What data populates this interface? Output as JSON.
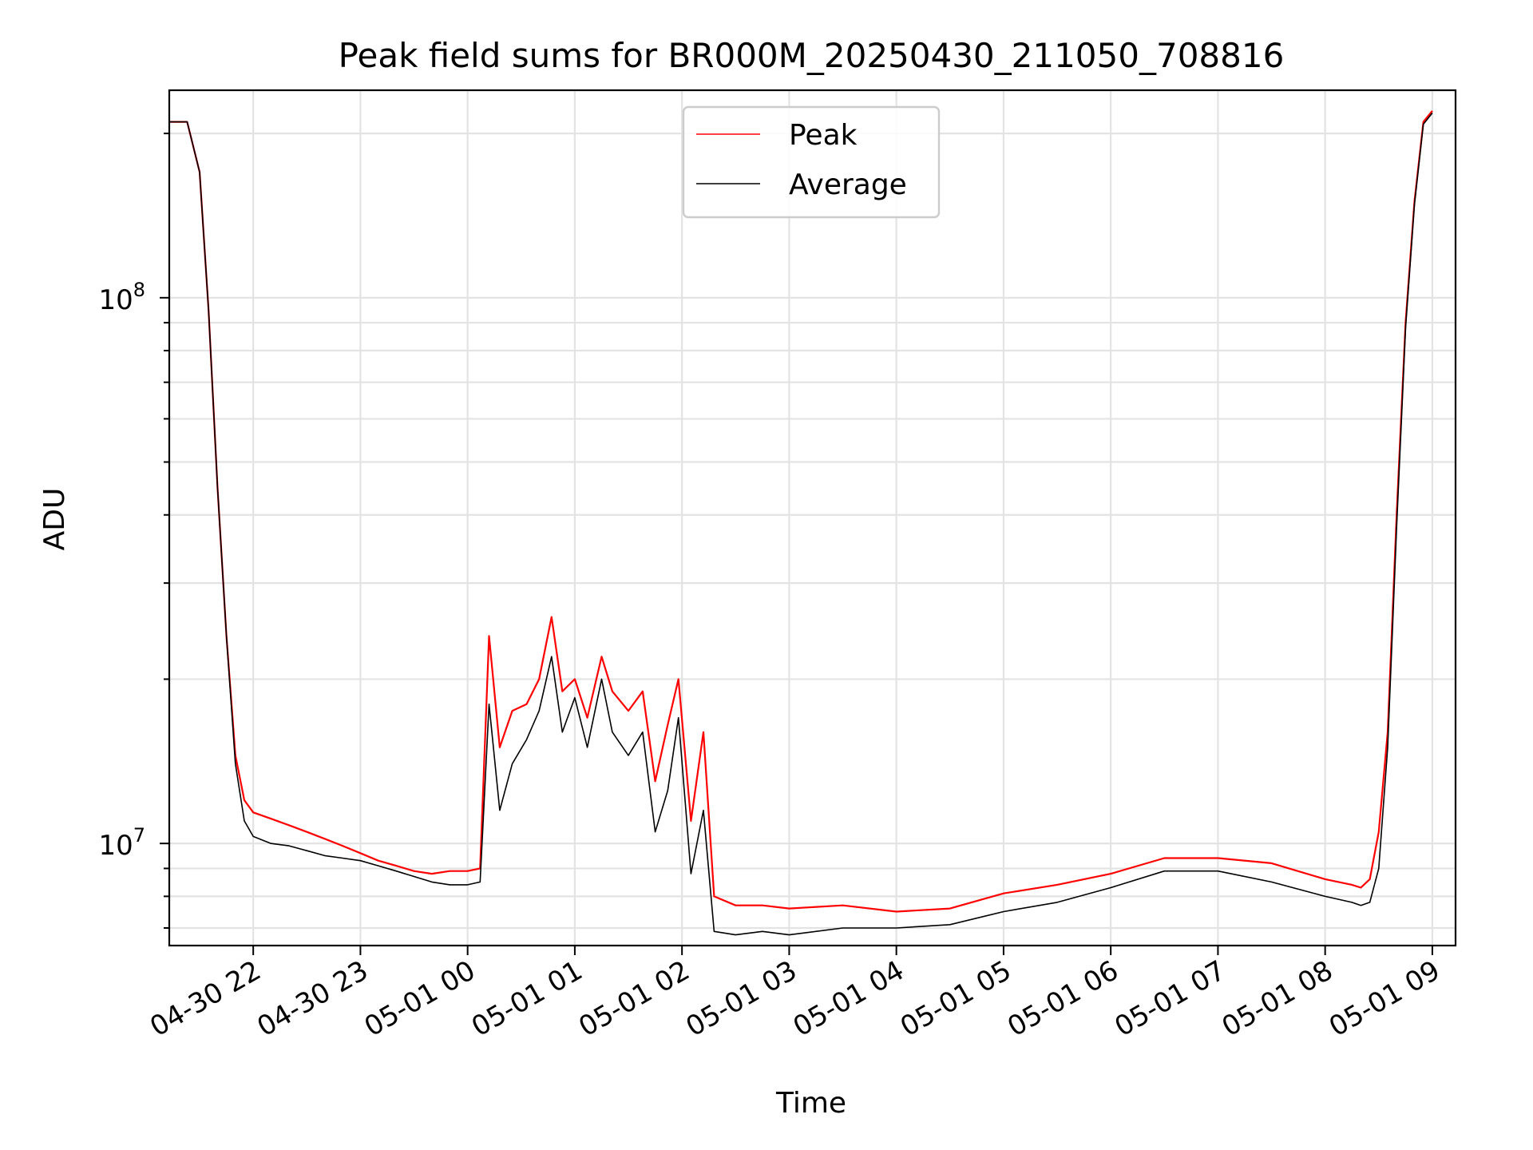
{
  "chart_data": {
    "type": "line",
    "title": "Peak field sums for BR000M_20250430_211050_708816",
    "xlabel": "Time",
    "ylabel": "ADU",
    "yscale": "log",
    "ylim": [
      6500000,
      240000000
    ],
    "xlim": [
      "2025-04-30 21:13",
      "2025-05-01 09:13"
    ],
    "grid": "major and minor",
    "legend": "upper center",
    "x_ticks": [
      "04-30 22",
      "04-30 23",
      "05-01 00",
      "05-01 01",
      "05-01 02",
      "05-01 03",
      "05-01 04",
      "05-01 05",
      "05-01 06",
      "05-01 07",
      "05-01 08",
      "05-01 09"
    ],
    "x_tick_times": [
      "2025-04-30 22:00",
      "2025-04-30 23:00",
      "2025-05-01 00:00",
      "2025-05-01 01:00",
      "2025-05-01 02:00",
      "2025-05-01 03:00",
      "2025-05-01 04:00",
      "2025-05-01 05:00",
      "2025-05-01 06:00",
      "2025-05-01 07:00",
      "2025-05-01 08:00",
      "2025-05-01 09:00"
    ],
    "y_tick_labels": [
      {
        "base": "10",
        "exp": "7",
        "value": 10000000
      },
      {
        "base": "10",
        "exp": "8",
        "value": 100000000
      }
    ],
    "series": [
      {
        "name": "Peak",
        "color": "#ff0000",
        "x": [
          "2025-04-30 21:13",
          "2025-04-30 21:23",
          "2025-04-30 21:30",
          "2025-04-30 21:35",
          "2025-04-30 21:40",
          "2025-04-30 21:45",
          "2025-04-30 21:50",
          "2025-04-30 21:55",
          "2025-04-30 22:00",
          "2025-04-30 22:10",
          "2025-04-30 22:20",
          "2025-04-30 22:30",
          "2025-04-30 22:40",
          "2025-04-30 22:50",
          "2025-04-30 23:00",
          "2025-04-30 23:10",
          "2025-04-30 23:20",
          "2025-04-30 23:30",
          "2025-04-30 23:40",
          "2025-04-30 23:50",
          "2025-05-01 00:00",
          "2025-05-01 00:07",
          "2025-05-01 00:12",
          "2025-05-01 00:18",
          "2025-05-01 00:25",
          "2025-05-01 00:33",
          "2025-05-01 00:40",
          "2025-05-01 00:47",
          "2025-05-01 00:53",
          "2025-05-01 01:00",
          "2025-05-01 01:07",
          "2025-05-01 01:15",
          "2025-05-01 01:21",
          "2025-05-01 01:30",
          "2025-05-01 01:38",
          "2025-05-01 01:45",
          "2025-05-01 01:52",
          "2025-05-01 01:58",
          "2025-05-01 02:05",
          "2025-05-01 02:12",
          "2025-05-01 02:18",
          "2025-05-01 02:30",
          "2025-05-01 02:45",
          "2025-05-01 03:00",
          "2025-05-01 03:30",
          "2025-05-01 04:00",
          "2025-05-01 04:30",
          "2025-05-01 05:00",
          "2025-05-01 05:30",
          "2025-05-01 06:00",
          "2025-05-01 06:30",
          "2025-05-01 07:00",
          "2025-05-01 07:30",
          "2025-05-01 08:00",
          "2025-05-01 08:15",
          "2025-05-01 08:20",
          "2025-05-01 08:25",
          "2025-05-01 08:30",
          "2025-05-01 08:35",
          "2025-05-01 08:40",
          "2025-05-01 08:45",
          "2025-05-01 08:50",
          "2025-05-01 08:55",
          "2025-05-01 09:00"
        ],
        "y": [
          210000000,
          210000000,
          170000000,
          95000000,
          45000000,
          24000000,
          14500000,
          12000000,
          11400000,
          11100000,
          10800000,
          10500000,
          10200000,
          9900000,
          9600000,
          9300000,
          9100000,
          8900000,
          8800000,
          8900000,
          8900000,
          9000000,
          24000000,
          15000000,
          17500000,
          18000000,
          20000000,
          26000000,
          19000000,
          20000000,
          17000000,
          22000000,
          19000000,
          17500000,
          19000000,
          13000000,
          16500000,
          20000000,
          11000000,
          16000000,
          8000000,
          7700000,
          7700000,
          7600000,
          7700000,
          7500000,
          7600000,
          8100000,
          8400000,
          8800000,
          9400000,
          9400000,
          9200000,
          8600000,
          8400000,
          8300000,
          8600000,
          10500000,
          16000000,
          40000000,
          90000000,
          150000000,
          210000000,
          220000000
        ]
      },
      {
        "name": "Average",
        "color": "#000000",
        "x": [
          "2025-04-30 21:13",
          "2025-04-30 21:23",
          "2025-04-30 21:30",
          "2025-04-30 21:35",
          "2025-04-30 21:40",
          "2025-04-30 21:45",
          "2025-04-30 21:50",
          "2025-04-30 21:55",
          "2025-04-30 22:00",
          "2025-04-30 22:10",
          "2025-04-30 22:20",
          "2025-04-30 22:30",
          "2025-04-30 22:40",
          "2025-04-30 22:50",
          "2025-04-30 23:00",
          "2025-04-30 23:10",
          "2025-04-30 23:20",
          "2025-04-30 23:30",
          "2025-04-30 23:40",
          "2025-04-30 23:50",
          "2025-05-01 00:00",
          "2025-05-01 00:07",
          "2025-05-01 00:12",
          "2025-05-01 00:18",
          "2025-05-01 00:25",
          "2025-05-01 00:33",
          "2025-05-01 00:40",
          "2025-05-01 00:47",
          "2025-05-01 00:53",
          "2025-05-01 01:00",
          "2025-05-01 01:07",
          "2025-05-01 01:15",
          "2025-05-01 01:21",
          "2025-05-01 01:30",
          "2025-05-01 01:38",
          "2025-05-01 01:45",
          "2025-05-01 01:52",
          "2025-05-01 01:58",
          "2025-05-01 02:05",
          "2025-05-01 02:12",
          "2025-05-01 02:18",
          "2025-05-01 02:30",
          "2025-05-01 02:45",
          "2025-05-01 03:00",
          "2025-05-01 03:30",
          "2025-05-01 04:00",
          "2025-05-01 04:30",
          "2025-05-01 05:00",
          "2025-05-01 05:30",
          "2025-05-01 06:00",
          "2025-05-01 06:30",
          "2025-05-01 07:00",
          "2025-05-01 07:30",
          "2025-05-01 08:00",
          "2025-05-01 08:15",
          "2025-05-01 08:20",
          "2025-05-01 08:25",
          "2025-05-01 08:30",
          "2025-05-01 08:35",
          "2025-05-01 08:40",
          "2025-05-01 08:45",
          "2025-05-01 08:50",
          "2025-05-01 08:55",
          "2025-05-01 09:00"
        ],
        "y": [
          210000000,
          210000000,
          170000000,
          95000000,
          45000000,
          24000000,
          14000000,
          11000000,
          10300000,
          10000000,
          9900000,
          9700000,
          9500000,
          9400000,
          9300000,
          9100000,
          8900000,
          8700000,
          8500000,
          8400000,
          8400000,
          8500000,
          18000000,
          11500000,
          14000000,
          15500000,
          17500000,
          22000000,
          16000000,
          18500000,
          15000000,
          20000000,
          16000000,
          14500000,
          16000000,
          10500000,
          12500000,
          17000000,
          8800000,
          11500000,
          6900000,
          6800000,
          6900000,
          6800000,
          7000000,
          7000000,
          7100000,
          7500000,
          7800000,
          8300000,
          8900000,
          8900000,
          8500000,
          8000000,
          7800000,
          7700000,
          7800000,
          9000000,
          15000000,
          38000000,
          88000000,
          148000000,
          208000000,
          218000000
        ]
      }
    ]
  }
}
